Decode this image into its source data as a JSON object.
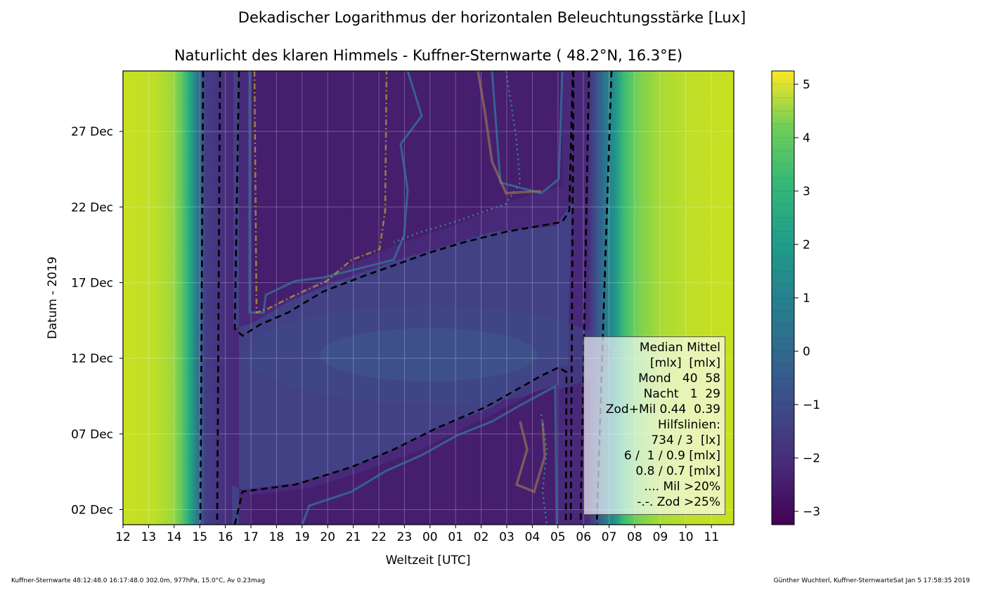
{
  "suptitle": "Dekadischer Logarithmus der horizontalen Beleuchtungsstärke [Lux]",
  "title": "Naturlicht des klaren Himmels - Kuffner-Sternwarte ( 48.2°N, 16.3°E)",
  "footer_left": "Kuffner-Sternwarte 48:12:48.0 16:17:48.0 302.0m,  977hPa, 15.0°C, Av 0.23mag",
  "footer_right": "Günther Wuchterl, Kuffner-SternwarteSat Jan  5 17:58:35 2019",
  "legend_lines": [
    "Median Mittel",
    "[mlx]  [mlx]",
    "Mond   40  58",
    "Nacht   1  29",
    "Zod+Mil 0.44  0.39",
    "Hilfslinien:",
    "734 / 3  [lx]",
    "6 /  1 / 0.9 [mlx]",
    "0.8 / 0.7 [mlx]",
    ".... Mil >20%",
    "-.-. Zod >25%"
  ],
  "colors": {
    "dashed_contour": "#000000",
    "moon_contour": "#2f7ea0",
    "zod_contour": "#b8a030",
    "mil_contour": "#2fa0a0"
  },
  "chart_data": {
    "type": "heatmap",
    "xlabel": "Weltzeit [UTC]",
    "ylabel": "Datum - 2019",
    "xticks": [
      "12",
      "13",
      "14",
      "15",
      "16",
      "17",
      "18",
      "19",
      "20",
      "21",
      "22",
      "23",
      "00",
      "01",
      "02",
      "03",
      "04",
      "05",
      "06",
      "07",
      "08",
      "09",
      "10",
      "11"
    ],
    "yticks": [
      {
        "label": "02 Dec",
        "day": 2
      },
      {
        "label": "07 Dec",
        "day": 7
      },
      {
        "label": "12 Dec",
        "day": 12
      },
      {
        "label": "17 Dec",
        "day": 17
      },
      {
        "label": "22 Dec",
        "day": 22
      },
      {
        "label": "27 Dec",
        "day": 27
      }
    ],
    "day_range": [
      1,
      31
    ],
    "colorbar": {
      "ticks": [
        5,
        4,
        3,
        2,
        1,
        0,
        -1,
        -2,
        -3
      ],
      "tick_labels": [
        "5",
        "4",
        "3",
        "2",
        "1",
        "0",
        "−1",
        "−2",
        "−3"
      ],
      "range": [
        -3.25,
        5.25
      ]
    },
    "grid": true
  }
}
